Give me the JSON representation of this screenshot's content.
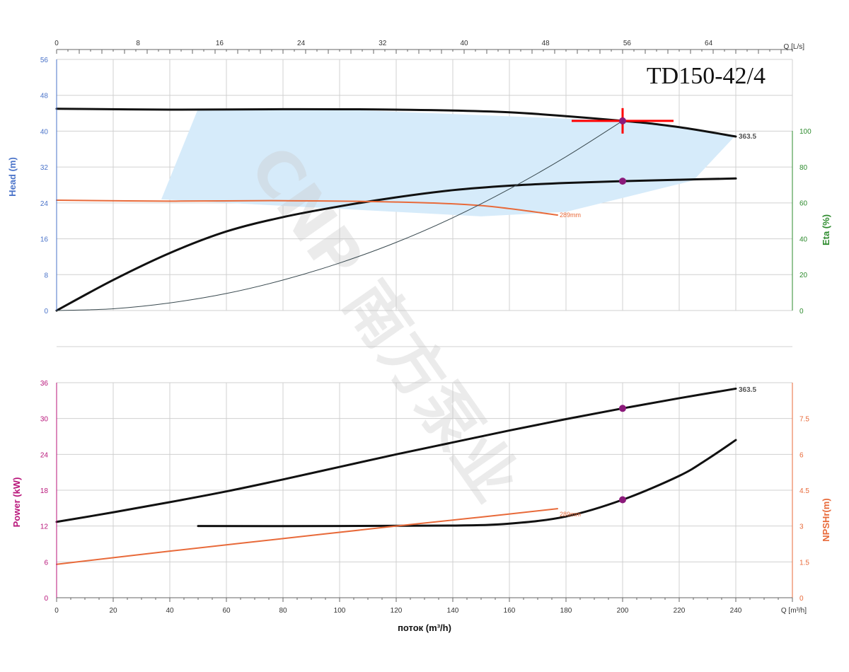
{
  "title": "TD150-42/4",
  "watermark": "CNP 南方泵业",
  "colors": {
    "head_axis": "#4a73c9",
    "eta_axis": "#2e8b2e",
    "power_axis": "#b8157a",
    "npsh_axis": "#e86a3a",
    "curve": "#111111",
    "system_curve": "#3a4a50",
    "small_impeller": "#e86a3a",
    "operating_region": "#d6ebfa",
    "duty_marker": "#ff0000",
    "point_marker": "#8b1a7a",
    "grid": "#d0d0d0"
  },
  "chart_data": [
    {
      "type": "line",
      "panel": "upper",
      "top_x_axis": {
        "label": "Q [L/s]",
        "ticks": [
          "0",
          "8",
          "16",
          "24",
          "32",
          "40",
          "48",
          "56",
          "64"
        ],
        "range": [
          0,
          66.67
        ]
      },
      "left_y_axis": {
        "label": "Head (m)",
        "ticks": [
          "0",
          "8",
          "16",
          "24",
          "32",
          "40",
          "48",
          "56"
        ],
        "range": [
          0,
          56
        ]
      },
      "right_y_axis": {
        "label": "Eta (%)",
        "ticks": [
          "0",
          "20",
          "40",
          "60",
          "80",
          "100"
        ],
        "range": [
          0,
          100
        ]
      },
      "operating_region": [
        [
          50,
          45
        ],
        [
          90,
          45.1
        ],
        [
          200,
          42.3
        ],
        [
          240,
          39.1
        ],
        [
          225,
          29
        ],
        [
          180,
          22
        ],
        [
          150,
          21
        ],
        [
          37,
          24.8
        ]
      ],
      "series": [
        {
          "name": "363.5",
          "kind": "head",
          "axis": "left",
          "points": [
            [
              0,
              45.0
            ],
            [
              40,
              44.8
            ],
            [
              80,
              44.9
            ],
            [
              120,
              44.8
            ],
            [
              160,
              44.2
            ],
            [
              200,
              42.3
            ],
            [
              220,
              40.9
            ],
            [
              240,
              38.8
            ]
          ]
        },
        {
          "name": "",
          "kind": "eta",
          "axis": "right",
          "points": [
            [
              0,
              0
            ],
            [
              20,
              17
            ],
            [
              40,
              32
            ],
            [
              60,
              44
            ],
            [
              80,
              52
            ],
            [
              100,
              58
            ],
            [
              120,
              63
            ],
            [
              140,
              67
            ],
            [
              160,
              69.5
            ],
            [
              180,
              71
            ],
            [
              200,
              72
            ],
            [
              220,
              72.8
            ],
            [
              240,
              73.5
            ]
          ]
        },
        {
          "name": "289mm",
          "kind": "head_small_impeller",
          "axis": "left",
          "points": [
            [
              0,
              24.6
            ],
            [
              40,
              24.4
            ],
            [
              80,
              24.5
            ],
            [
              120,
              24.2
            ],
            [
              150,
              23.4
            ],
            [
              177,
              21.3
            ]
          ]
        },
        {
          "name": "",
          "kind": "system_curve",
          "axis": "left",
          "points": [
            [
              0,
              0
            ],
            [
              20,
              0.4
            ],
            [
              40,
              1.7
            ],
            [
              60,
              3.8
            ],
            [
              80,
              6.8
            ],
            [
              100,
              10.6
            ],
            [
              120,
              15.2
            ],
            [
              140,
              20.7
            ],
            [
              160,
              27.1
            ],
            [
              180,
              34.3
            ],
            [
              200,
              42.3
            ]
          ]
        }
      ],
      "duty_point": {
        "q": 200,
        "head": 42.3
      },
      "eta_point": {
        "q": 200,
        "eta": 72
      }
    },
    {
      "type": "line",
      "panel": "lower",
      "x_axis": {
        "label": "поток (m³/h)",
        "unit_label": "Q [m³/h]",
        "ticks": [
          "0",
          "20",
          "40",
          "60",
          "80",
          "100",
          "120",
          "140",
          "160",
          "180",
          "200",
          "220",
          "240"
        ],
        "range": [
          0,
          240
        ]
      },
      "left_y_axis": {
        "label": "Power (kW)",
        "ticks": [
          "0",
          "6",
          "12",
          "18",
          "24",
          "30",
          "36"
        ],
        "range": [
          0,
          36
        ]
      },
      "right_y_axis": {
        "label": "NPSHr(m)",
        "ticks": [
          "0",
          "1.5",
          "3",
          "4.5",
          "6",
          "7.5"
        ],
        "range": [
          0,
          9
        ]
      },
      "series": [
        {
          "name": "363.5",
          "kind": "power",
          "axis": "left",
          "points": [
            [
              0,
              12.7
            ],
            [
              20,
              14.3
            ],
            [
              40,
              16
            ],
            [
              60,
              17.8
            ],
            [
              80,
              19.8
            ],
            [
              100,
              21.9
            ],
            [
              120,
              24
            ],
            [
              140,
              26
            ],
            [
              160,
              28
            ],
            [
              180,
              29.9
            ],
            [
              200,
              31.7
            ],
            [
              220,
              33.4
            ],
            [
              240,
              35
            ]
          ]
        },
        {
          "name": "",
          "kind": "npsh",
          "axis": "right",
          "points": [
            [
              50,
              3.0
            ],
            [
              100,
              3.0
            ],
            [
              140,
              3.02
            ],
            [
              160,
              3.1
            ],
            [
              180,
              3.4
            ],
            [
              200,
              4.1
            ],
            [
              220,
              5.1
            ],
            [
              230,
              5.8
            ],
            [
              240,
              6.6
            ]
          ]
        },
        {
          "name": "289mm",
          "kind": "power_small_impeller",
          "axis": "left",
          "points": [
            [
              0,
              5.6
            ],
            [
              40,
              7.8
            ],
            [
              80,
              9.9
            ],
            [
              120,
              12
            ],
            [
              150,
              13.5
            ],
            [
              177,
              14.9
            ]
          ]
        }
      ],
      "power_point": {
        "q": 200,
        "power": 31.7
      },
      "npsh_point": {
        "q": 200,
        "npsh": 4.1
      }
    }
  ]
}
